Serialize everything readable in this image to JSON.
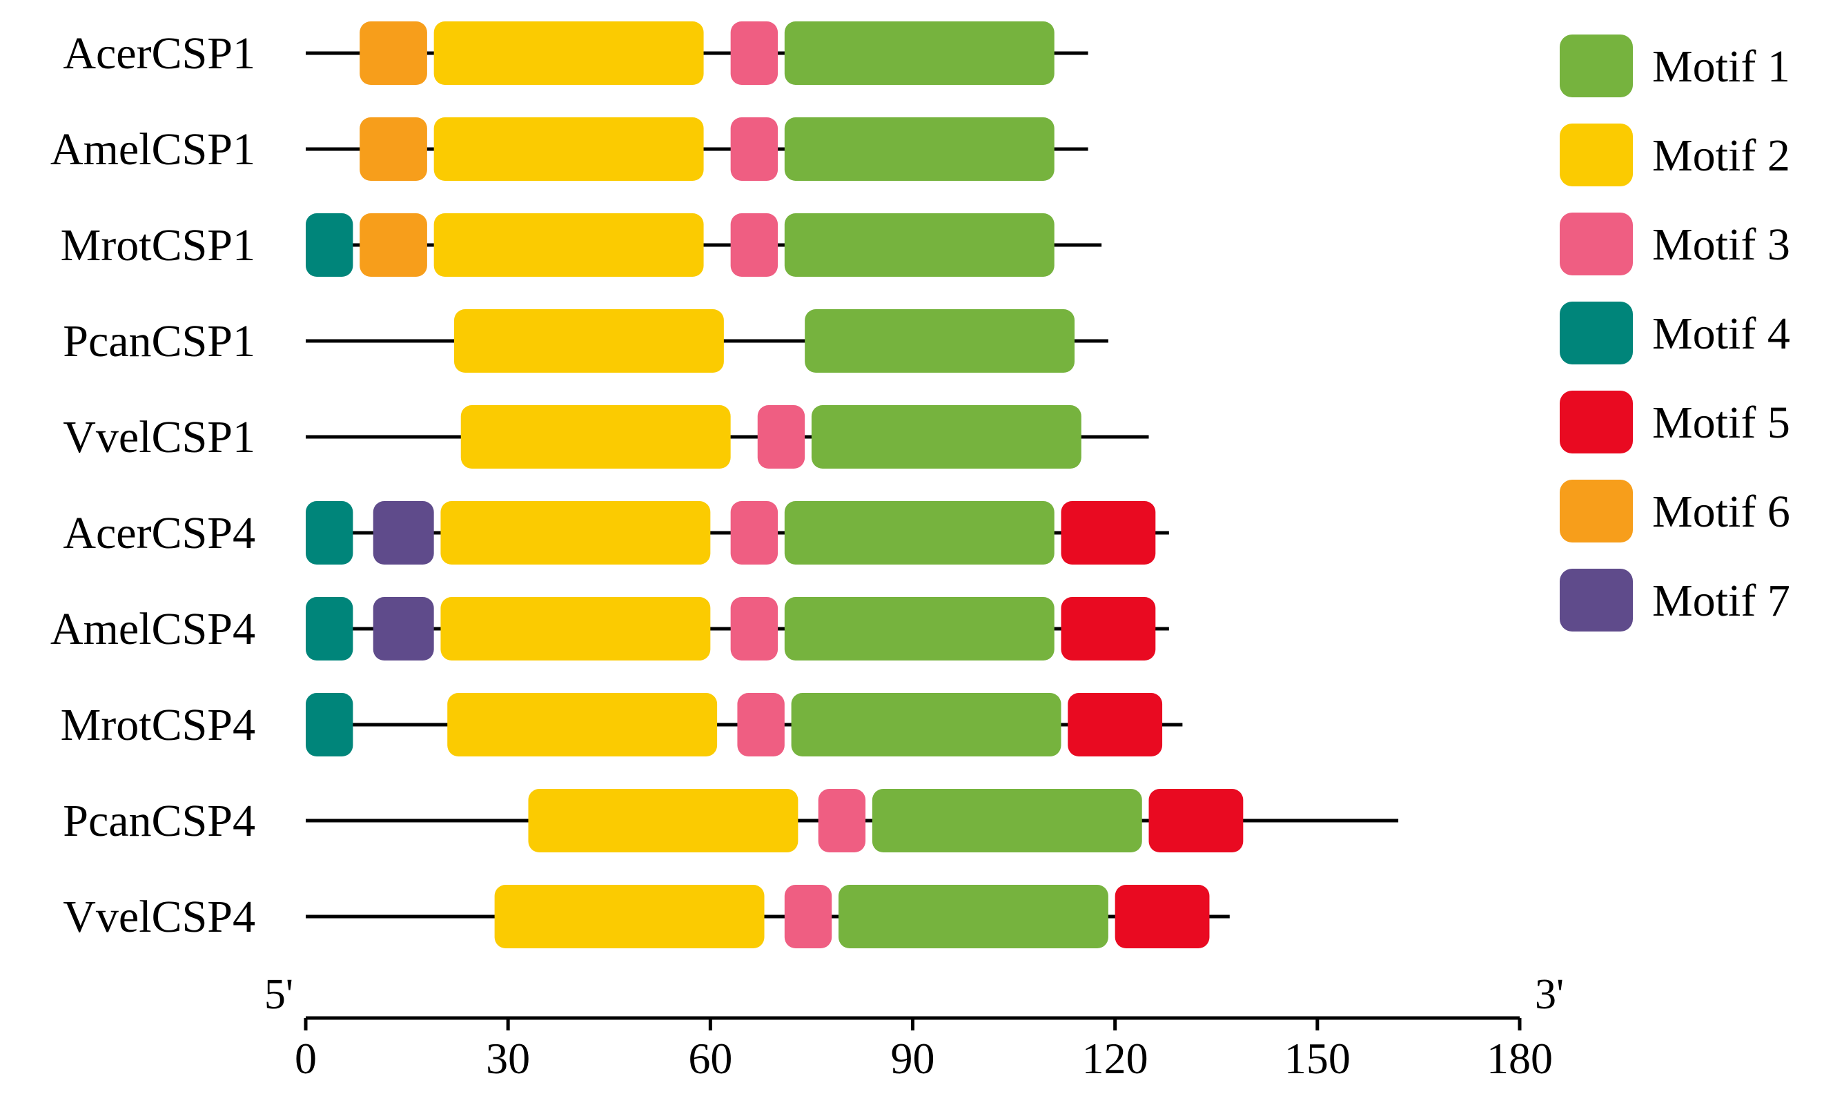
{
  "chart_data": {
    "type": "motif-diagram",
    "axis": {
      "min": 0,
      "max": 180,
      "ticks": [
        0,
        30,
        60,
        90,
        120,
        150,
        180
      ],
      "tick_labels": [
        "0",
        "30",
        "60",
        "90",
        "120",
        "150",
        "180"
      ],
      "left_end_label": "5'",
      "right_end_label": "3'"
    },
    "legend": [
      {
        "motif": 1,
        "label": "Motif 1",
        "color": "#76B33E"
      },
      {
        "motif": 2,
        "label": "Motif 2",
        "color": "#FBCB01"
      },
      {
        "motif": 3,
        "label": "Motif 3",
        "color": "#EF5E82"
      },
      {
        "motif": 4,
        "label": "Motif 4",
        "color": "#00857A"
      },
      {
        "motif": 5,
        "label": "Motif 5",
        "color": "#E90A21"
      },
      {
        "motif": 6,
        "label": "Motif 6",
        "color": "#F79E1B"
      },
      {
        "motif": 7,
        "label": "Motif 7",
        "color": "#5F4B8B"
      }
    ],
    "proteins": [
      {
        "name": "AcerCSP1",
        "length": 116,
        "motifs": [
          {
            "motif": 6,
            "start": 8,
            "end": 18
          },
          {
            "motif": 2,
            "start": 19,
            "end": 59
          },
          {
            "motif": 3,
            "start": 63,
            "end": 70
          },
          {
            "motif": 1,
            "start": 71,
            "end": 111
          }
        ]
      },
      {
        "name": "AmelCSP1",
        "length": 116,
        "motifs": [
          {
            "motif": 6,
            "start": 8,
            "end": 18
          },
          {
            "motif": 2,
            "start": 19,
            "end": 59
          },
          {
            "motif": 3,
            "start": 63,
            "end": 70
          },
          {
            "motif": 1,
            "start": 71,
            "end": 111
          }
        ]
      },
      {
        "name": "MrotCSP1",
        "length": 118,
        "motifs": [
          {
            "motif": 4,
            "start": 0,
            "end": 7
          },
          {
            "motif": 6,
            "start": 8,
            "end": 18
          },
          {
            "motif": 2,
            "start": 19,
            "end": 59
          },
          {
            "motif": 3,
            "start": 63,
            "end": 70
          },
          {
            "motif": 1,
            "start": 71,
            "end": 111
          }
        ]
      },
      {
        "name": "PcanCSP1",
        "length": 119,
        "motifs": [
          {
            "motif": 2,
            "start": 22,
            "end": 62
          },
          {
            "motif": 1,
            "start": 74,
            "end": 114
          }
        ]
      },
      {
        "name": "VvelCSP1",
        "length": 125,
        "motifs": [
          {
            "motif": 2,
            "start": 23,
            "end": 63
          },
          {
            "motif": 3,
            "start": 67,
            "end": 74
          },
          {
            "motif": 1,
            "start": 75,
            "end": 115
          }
        ]
      },
      {
        "name": "AcerCSP4",
        "length": 128,
        "motifs": [
          {
            "motif": 4,
            "start": 0,
            "end": 7
          },
          {
            "motif": 7,
            "start": 10,
            "end": 19
          },
          {
            "motif": 2,
            "start": 20,
            "end": 60
          },
          {
            "motif": 3,
            "start": 63,
            "end": 70
          },
          {
            "motif": 1,
            "start": 71,
            "end": 111
          },
          {
            "motif": 5,
            "start": 112,
            "end": 126
          }
        ]
      },
      {
        "name": "AmelCSP4",
        "length": 128,
        "motifs": [
          {
            "motif": 4,
            "start": 0,
            "end": 7
          },
          {
            "motif": 7,
            "start": 10,
            "end": 19
          },
          {
            "motif": 2,
            "start": 20,
            "end": 60
          },
          {
            "motif": 3,
            "start": 63,
            "end": 70
          },
          {
            "motif": 1,
            "start": 71,
            "end": 111
          },
          {
            "motif": 5,
            "start": 112,
            "end": 126
          }
        ]
      },
      {
        "name": "MrotCSP4",
        "length": 130,
        "motifs": [
          {
            "motif": 4,
            "start": 0,
            "end": 7
          },
          {
            "motif": 2,
            "start": 21,
            "end": 61
          },
          {
            "motif": 3,
            "start": 64,
            "end": 71
          },
          {
            "motif": 1,
            "start": 72,
            "end": 112
          },
          {
            "motif": 5,
            "start": 113,
            "end": 127
          }
        ]
      },
      {
        "name": "PcanCSP4",
        "length": 162,
        "motifs": [
          {
            "motif": 2,
            "start": 33,
            "end": 73
          },
          {
            "motif": 3,
            "start": 76,
            "end": 83
          },
          {
            "motif": 1,
            "start": 84,
            "end": 124
          },
          {
            "motif": 5,
            "start": 125,
            "end": 139
          }
        ]
      },
      {
        "name": "VvelCSP4",
        "length": 137,
        "motifs": [
          {
            "motif": 2,
            "start": 28,
            "end": 68
          },
          {
            "motif": 3,
            "start": 71,
            "end": 78
          },
          {
            "motif": 1,
            "start": 79,
            "end": 119
          },
          {
            "motif": 5,
            "start": 120,
            "end": 134
          }
        ]
      }
    ]
  }
}
